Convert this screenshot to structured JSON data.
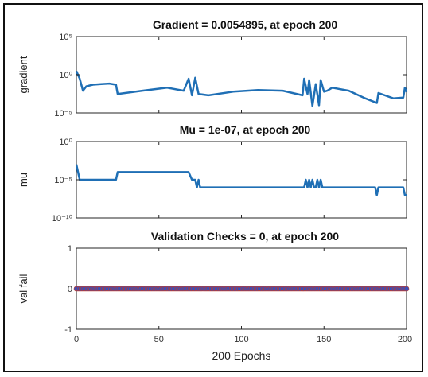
{
  "chart_data": [
    {
      "type": "line",
      "title": "Gradient = 0.0054895, at epoch 200",
      "ylabel": "gradient",
      "xlabel": "",
      "yscale": "log",
      "xlim": [
        0,
        200
      ],
      "ylim": [
        1e-05,
        100000
      ],
      "yticks": [
        1e-05,
        1,
        100000
      ],
      "ytick_labels": [
        "10⁻⁵",
        "10⁰",
        "10⁵"
      ],
      "grid": false,
      "color": "#1f6fb5",
      "series": [
        {
          "x": [
            0,
            2,
            4,
            6,
            10,
            15,
            20,
            24,
            25,
            40,
            55,
            65,
            68,
            70,
            72,
            74,
            80,
            95,
            110,
            125,
            137,
            138,
            140,
            141,
            143,
            145,
            147,
            148,
            150,
            152,
            155,
            165,
            175,
            182,
            183,
            192,
            198,
            199,
            200
          ],
          "y": [
            3.0,
            0.3,
            0.008,
            0.03,
            0.05,
            0.06,
            0.07,
            0.05,
            0.003,
            0.008,
            0.02,
            0.008,
            0.3,
            0.002,
            0.4,
            0.003,
            0.002,
            0.006,
            0.01,
            0.008,
            0.002,
            0.3,
            0.003,
            0.2,
            8e-05,
            0.06,
            0.0001,
            0.2,
            0.006,
            0.008,
            0.02,
            0.008,
            0.0008,
            0.0002,
            0.004,
            0.0008,
            0.001,
            0.02,
            0.0054895
          ]
        }
      ]
    },
    {
      "type": "line",
      "title": "Mu = 1e-07, at epoch 200",
      "ylabel": "mu",
      "xlabel": "",
      "yscale": "log",
      "xlim": [
        0,
        200
      ],
      "ylim": [
        1e-10,
        1
      ],
      "yticks": [
        1e-10,
        1e-05,
        1
      ],
      "ytick_labels": [
        "10⁻¹⁰",
        "10⁻⁵",
        "10⁰"
      ],
      "grid": false,
      "color": "#1f6fb5",
      "series": [
        {
          "x": [
            0,
            1,
            2,
            3,
            24,
            25,
            68,
            70,
            72,
            73,
            74,
            75,
            76,
            138,
            139,
            140,
            141,
            142,
            143,
            144,
            145,
            146,
            147,
            148,
            149,
            150,
            181,
            182,
            183,
            185,
            186,
            198,
            199,
            200
          ],
          "y": [
            0.001,
            0.0001,
            1e-05,
            1e-05,
            1e-05,
            0.0001,
            0.0001,
            1e-05,
            1e-05,
            1e-06,
            1e-05,
            1e-06,
            1e-06,
            1e-06,
            1e-05,
            1e-06,
            1e-05,
            1e-06,
            1e-05,
            1e-06,
            1e-06,
            1e-05,
            1e-06,
            1e-05,
            1e-06,
            1e-06,
            1e-06,
            1e-07,
            1e-06,
            1e-06,
            1e-06,
            1e-06,
            1e-07,
            1e-07
          ]
        }
      ]
    },
    {
      "type": "scatter",
      "title": "Validation Checks = 0, at epoch 200",
      "ylabel": "val fail",
      "xlabel": "200 Epochs",
      "xlim": [
        0,
        200
      ],
      "ylim": [
        -1,
        1
      ],
      "xticks": [
        0,
        50,
        100,
        150,
        200
      ],
      "xtick_labels": [
        "0",
        "50",
        "100",
        "150",
        "200"
      ],
      "yticks": [
        -1,
        0,
        1
      ],
      "ytick_labels": [
        "-1",
        "0",
        "1"
      ],
      "grid": false,
      "point_value": 0,
      "point_count": 201,
      "point_color": "#3b4fb8",
      "point_edge_color": "#c0392b",
      "line_color": "#1f6fb5"
    }
  ]
}
